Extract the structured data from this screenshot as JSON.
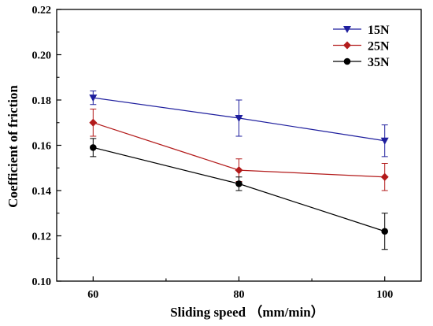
{
  "chart_data": {
    "type": "line",
    "xlabel": "Sliding speed （mm/min）",
    "ylabel": "Coefficient of friction",
    "x": [
      60,
      80,
      100
    ],
    "x_ticks": [
      60,
      80,
      100
    ],
    "x_tick_labels": [
      "60",
      "80",
      "100"
    ],
    "xlim": [
      55,
      105
    ],
    "ylim": [
      0.1,
      0.22
    ],
    "y_ticks": [
      0.1,
      0.12,
      0.14,
      0.16,
      0.18,
      0.2,
      0.22
    ],
    "y_tick_labels": [
      "0.10",
      "0.12",
      "0.14",
      "0.16",
      "0.18",
      "0.20",
      "0.22"
    ],
    "grid": false,
    "legend_position": "top-right",
    "series": [
      {
        "name": "15N",
        "color": "#1f1f9e",
        "marker": "triangle-down",
        "values": [
          0.181,
          0.172,
          0.162
        ],
        "error": [
          0.003,
          0.008,
          0.007
        ]
      },
      {
        "name": "25N",
        "color": "#b31b1b",
        "marker": "diamond",
        "values": [
          0.17,
          0.149,
          0.146
        ],
        "error": [
          0.006,
          0.005,
          0.006
        ]
      },
      {
        "name": "35N",
        "color": "#000000",
        "marker": "circle",
        "values": [
          0.159,
          0.143,
          0.122
        ],
        "error": [
          0.004,
          0.003,
          0.008
        ]
      }
    ]
  }
}
